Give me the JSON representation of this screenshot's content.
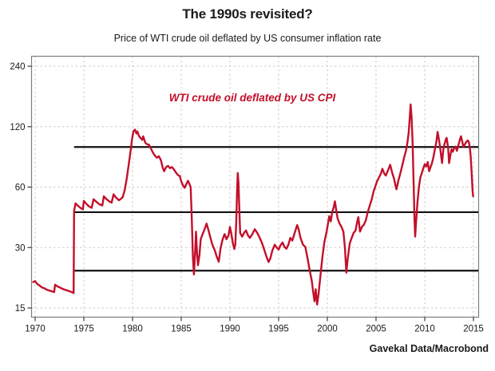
{
  "header": {
    "title": "The 1990s revisited?",
    "subtitle": "Price of WTI crude oil deflated by US consumer inflation rate"
  },
  "credit": "Gavekal Data/Macrobond",
  "chart_data": {
    "type": "line",
    "title": "The 1990s revisited?",
    "subtitle": "Price of WTI crude oil deflated by US consumer inflation rate",
    "series_label": "WTI crude oil deflated by US CPI",
    "series_color": "#c30f2a",
    "grid": "dashed-lightgray",
    "legend_position": "none",
    "y_scale": "log",
    "xlim": [
      1969.6,
      2015.5
    ],
    "ylim": [
      13.5,
      268
    ],
    "x_ticks": [
      1970,
      1975,
      1980,
      1985,
      1990,
      1995,
      2000,
      2005,
      2010,
      2015
    ],
    "y_ticks": [
      240,
      120,
      60,
      30,
      15
    ],
    "reference_lines": [
      {
        "value": 95,
        "from": 1974,
        "to": 2015.5,
        "color": "#111111"
      },
      {
        "value": 45,
        "from": 1974,
        "to": 2015.5,
        "color": "#111111"
      },
      {
        "value": 23,
        "from": 1974,
        "to": 2015.5,
        "color": "#111111"
      }
    ],
    "points": [
      [
        1969.8,
        20.2
      ],
      [
        1970.0,
        20.4
      ],
      [
        1970.2,
        19.8
      ],
      [
        1970.45,
        19.4
      ],
      [
        1970.7,
        19.0
      ],
      [
        1970.95,
        18.8
      ],
      [
        1971.2,
        18.5
      ],
      [
        1971.5,
        18.3
      ],
      [
        1971.8,
        18.1
      ],
      [
        1971.95,
        18.0
      ],
      [
        1972.05,
        19.6
      ],
      [
        1972.3,
        19.2
      ],
      [
        1972.6,
        18.9
      ],
      [
        1972.9,
        18.6
      ],
      [
        1973.2,
        18.4
      ],
      [
        1973.5,
        18.2
      ],
      [
        1973.75,
        18.0
      ],
      [
        1973.95,
        17.8
      ],
      [
        1974.0,
        45.5
      ],
      [
        1974.15,
        49.8
      ],
      [
        1974.4,
        48.4
      ],
      [
        1974.65,
        47.3
      ],
      [
        1974.9,
        46.5
      ],
      [
        1975.0,
        51.2
      ],
      [
        1975.25,
        49.6
      ],
      [
        1975.5,
        48.2
      ],
      [
        1975.8,
        47.3
      ],
      [
        1976.0,
        52.2
      ],
      [
        1976.3,
        50.6
      ],
      [
        1976.6,
        49.3
      ],
      [
        1976.9,
        48.6
      ],
      [
        1977.05,
        54.0
      ],
      [
        1977.3,
        52.4
      ],
      [
        1977.6,
        51.0
      ],
      [
        1977.85,
        50.2
      ],
      [
        1978.05,
        55.2
      ],
      [
        1978.3,
        53.2
      ],
      [
        1978.6,
        51.6
      ],
      [
        1978.85,
        52.6
      ],
      [
        1979.0,
        53.6
      ],
      [
        1979.2,
        58.0
      ],
      [
        1979.4,
        66.0
      ],
      [
        1979.6,
        77.0
      ],
      [
        1979.8,
        91.0
      ],
      [
        1979.95,
        104.0
      ],
      [
        1980.1,
        114.0
      ],
      [
        1980.25,
        116.0
      ],
      [
        1980.4,
        111.0
      ],
      [
        1980.5,
        113.5
      ],
      [
        1980.65,
        108.0
      ],
      [
        1980.85,
        105.0
      ],
      [
        1981.0,
        103.0
      ],
      [
        1981.1,
        107.5
      ],
      [
        1981.3,
        100.0
      ],
      [
        1981.5,
        98.0
      ],
      [
        1981.7,
        97.5
      ],
      [
        1981.9,
        93.0
      ],
      [
        1982.1,
        89.0
      ],
      [
        1982.3,
        86.0
      ],
      [
        1982.5,
        84.0
      ],
      [
        1982.7,
        85.5
      ],
      [
        1982.9,
        82.0
      ],
      [
        1983.1,
        75.0
      ],
      [
        1983.25,
        72.0
      ],
      [
        1983.45,
        75.5
      ],
      [
        1983.65,
        76.5
      ],
      [
        1983.85,
        74.5
      ],
      [
        1984.05,
        75.5
      ],
      [
        1984.25,
        73.5
      ],
      [
        1984.45,
        71.0
      ],
      [
        1984.65,
        69.0
      ],
      [
        1984.85,
        68.0
      ],
      [
        1985.0,
        64.0
      ],
      [
        1985.2,
        61.0
      ],
      [
        1985.35,
        59.5
      ],
      [
        1985.55,
        62.5
      ],
      [
        1985.7,
        64.5
      ],
      [
        1985.85,
        62.0
      ],
      [
        1985.97,
        60.0
      ],
      [
        1986.08,
        42.0
      ],
      [
        1986.2,
        27.0
      ],
      [
        1986.3,
        22.0
      ],
      [
        1986.45,
        30.0
      ],
      [
        1986.52,
        36.0
      ],
      [
        1986.62,
        28.0
      ],
      [
        1986.72,
        24.5
      ],
      [
        1986.87,
        27.5
      ],
      [
        1987.0,
        33.0
      ],
      [
        1987.2,
        35.0
      ],
      [
        1987.4,
        37.0
      ],
      [
        1987.6,
        39.5
      ],
      [
        1987.8,
        36.5
      ],
      [
        1988.0,
        33.5
      ],
      [
        1988.2,
        31.0
      ],
      [
        1988.45,
        29.0
      ],
      [
        1988.65,
        27.0
      ],
      [
        1988.85,
        25.5
      ],
      [
        1989.05,
        30.0
      ],
      [
        1989.25,
        33.0
      ],
      [
        1989.45,
        35.0
      ],
      [
        1989.65,
        33.0
      ],
      [
        1989.85,
        34.5
      ],
      [
        1990.0,
        38.0
      ],
      [
        1990.15,
        35.0
      ],
      [
        1990.3,
        31.5
      ],
      [
        1990.45,
        29.5
      ],
      [
        1990.55,
        31.0
      ],
      [
        1990.65,
        40.0
      ],
      [
        1990.72,
        55.0
      ],
      [
        1990.8,
        70.5
      ],
      [
        1990.88,
        63.0
      ],
      [
        1990.97,
        46.0
      ],
      [
        1991.05,
        35.5
      ],
      [
        1991.25,
        34.0
      ],
      [
        1991.45,
        35.5
      ],
      [
        1991.65,
        36.5
      ],
      [
        1991.85,
        34.5
      ],
      [
        1992.05,
        33.5
      ],
      [
        1992.3,
        35.0
      ],
      [
        1992.55,
        37.0
      ],
      [
        1992.8,
        35.5
      ],
      [
        1993.0,
        34.0
      ],
      [
        1993.25,
        32.0
      ],
      [
        1993.5,
        29.5
      ],
      [
        1993.75,
        27.0
      ],
      [
        1993.97,
        25.4
      ],
      [
        1994.15,
        26.5
      ],
      [
        1994.35,
        29.0
      ],
      [
        1994.6,
        31.0
      ],
      [
        1994.8,
        30.0
      ],
      [
        1995.0,
        29.3
      ],
      [
        1995.2,
        30.8
      ],
      [
        1995.4,
        31.8
      ],
      [
        1995.6,
        30.2
      ],
      [
        1995.8,
        29.6
      ],
      [
        1996.0,
        31.0
      ],
      [
        1996.2,
        33.5
      ],
      [
        1996.4,
        32.5
      ],
      [
        1996.65,
        35.5
      ],
      [
        1996.9,
        38.8
      ],
      [
        1997.05,
        37.0
      ],
      [
        1997.25,
        33.5
      ],
      [
        1997.5,
        31.0
      ],
      [
        1997.75,
        30.2
      ],
      [
        1998.0,
        26.0
      ],
      [
        1998.2,
        23.0
      ],
      [
        1998.4,
        20.5
      ],
      [
        1998.55,
        18.0
      ],
      [
        1998.68,
        16.2
      ],
      [
        1998.8,
        18.6
      ],
      [
        1998.95,
        15.6
      ],
      [
        1999.1,
        17.6
      ],
      [
        1999.3,
        22.0
      ],
      [
        1999.5,
        27.0
      ],
      [
        1999.7,
        32.0
      ],
      [
        1999.9,
        35.5
      ],
      [
        2000.05,
        39.0
      ],
      [
        2000.2,
        43.0
      ],
      [
        2000.35,
        40.5
      ],
      [
        2000.5,
        45.0
      ],
      [
        2000.65,
        47.5
      ],
      [
        2000.78,
        51.0
      ],
      [
        2000.9,
        46.5
      ],
      [
        2001.05,
        42.0
      ],
      [
        2001.25,
        39.5
      ],
      [
        2001.45,
        38.0
      ],
      [
        2001.65,
        36.0
      ],
      [
        2001.8,
        30.0
      ],
      [
        2001.95,
        22.5
      ],
      [
        2002.1,
        26.5
      ],
      [
        2002.3,
        31.5
      ],
      [
        2002.5,
        33.5
      ],
      [
        2002.7,
        35.5
      ],
      [
        2002.9,
        36.5
      ],
      [
        2003.05,
        40.0
      ],
      [
        2003.18,
        42.5
      ],
      [
        2003.35,
        36.0
      ],
      [
        2003.55,
        38.0
      ],
      [
        2003.75,
        39.0
      ],
      [
        2003.95,
        41.0
      ],
      [
        2004.15,
        45.0
      ],
      [
        2004.35,
        48.5
      ],
      [
        2004.55,
        52.0
      ],
      [
        2004.75,
        57.0
      ],
      [
        2004.95,
        61.0
      ],
      [
        2005.1,
        64.0
      ],
      [
        2005.3,
        67.0
      ],
      [
        2005.5,
        70.0
      ],
      [
        2005.65,
        74.0
      ],
      [
        2005.85,
        70.0
      ],
      [
        2006.0,
        68.5
      ],
      [
        2006.2,
        72.0
      ],
      [
        2006.45,
        77.5
      ],
      [
        2006.65,
        71.0
      ],
      [
        2006.85,
        66.0
      ],
      [
        2007.0,
        61.0
      ],
      [
        2007.1,
        58.5
      ],
      [
        2007.3,
        65.0
      ],
      [
        2007.5,
        70.5
      ],
      [
        2007.7,
        77.0
      ],
      [
        2007.9,
        85.0
      ],
      [
        2008.05,
        90.0
      ],
      [
        2008.2,
        98.0
      ],
      [
        2008.35,
        112.0
      ],
      [
        2008.5,
        142.0
      ],
      [
        2008.55,
        155.0
      ],
      [
        2008.65,
        134.0
      ],
      [
        2008.75,
        100.0
      ],
      [
        2008.85,
        64.0
      ],
      [
        2008.95,
        41.0
      ],
      [
        2009.02,
        34.0
      ],
      [
        2009.12,
        41.0
      ],
      [
        2009.25,
        50.0
      ],
      [
        2009.4,
        60.0
      ],
      [
        2009.55,
        67.0
      ],
      [
        2009.72,
        71.0
      ],
      [
        2009.88,
        75.0
      ],
      [
        2010.0,
        78.0
      ],
      [
        2010.15,
        76.0
      ],
      [
        2010.3,
        80.0
      ],
      [
        2010.45,
        72.0
      ],
      [
        2010.6,
        75.5
      ],
      [
        2010.75,
        79.0
      ],
      [
        2010.9,
        85.0
      ],
      [
        2011.05,
        93.0
      ],
      [
        2011.2,
        101.0
      ],
      [
        2011.32,
        113.0
      ],
      [
        2011.45,
        104.0
      ],
      [
        2011.55,
        97.0
      ],
      [
        2011.68,
        86.0
      ],
      [
        2011.78,
        79.0
      ],
      [
        2011.9,
        92.0
      ],
      [
        2012.0,
        97.0
      ],
      [
        2012.15,
        103.0
      ],
      [
        2012.25,
        105.5
      ],
      [
        2012.4,
        94.0
      ],
      [
        2012.5,
        79.0
      ],
      [
        2012.62,
        86.0
      ],
      [
        2012.75,
        92.5
      ],
      [
        2012.88,
        90.0
      ],
      [
        2013.0,
        93.5
      ],
      [
        2013.15,
        95.5
      ],
      [
        2013.3,
        91.0
      ],
      [
        2013.45,
        97.0
      ],
      [
        2013.6,
        103.0
      ],
      [
        2013.72,
        107.5
      ],
      [
        2013.85,
        101.0
      ],
      [
        2013.97,
        95.0
      ],
      [
        2014.1,
        97.5
      ],
      [
        2014.25,
        100.5
      ],
      [
        2014.4,
        102.5
      ],
      [
        2014.52,
        101.0
      ],
      [
        2014.62,
        95.0
      ],
      [
        2014.72,
        85.0
      ],
      [
        2014.82,
        70.0
      ],
      [
        2014.92,
        57.0
      ],
      [
        2014.97,
        54.0
      ]
    ]
  }
}
